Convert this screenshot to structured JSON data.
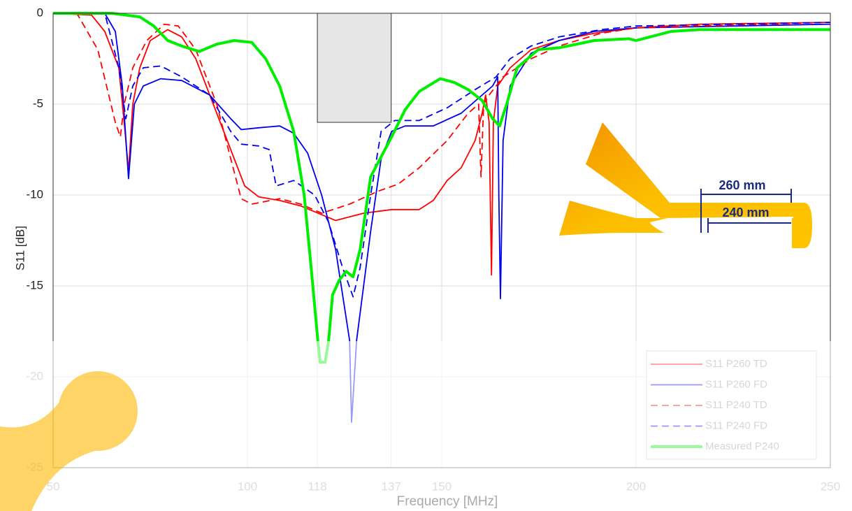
{
  "chart_data": {
    "type": "line",
    "xlabel": "Frequency [MHz]",
    "ylabel": "S11 [dB]",
    "xlim": [
      50,
      250
    ],
    "ylim": [
      -25,
      0
    ],
    "xticks": [
      50,
      100,
      118,
      137,
      150,
      200,
      250
    ],
    "yticks": [
      -25,
      -20,
      -15,
      -10,
      -5,
      0
    ],
    "grid": true,
    "legend": "lower right",
    "highlight": {
      "xlim": [
        118,
        137
      ],
      "ylim": [
        -6,
        0
      ],
      "color": "#e6e6e6"
    },
    "inset": {
      "labels": [
        "260 mm",
        "240 mm"
      ]
    },
    "series": [
      {
        "name": "S11 P260 TD",
        "color": "#ff0000",
        "width": 1.8,
        "dashed": false,
        "x": [
          50,
          59.9,
          63.3,
          66.9,
          68.3,
          69.4,
          70.5,
          72.3,
          75,
          79.5,
          83.1,
          86.7,
          90.3,
          95.7,
          99.3,
          102.9,
          108.3,
          113.7,
          122.7,
          129.9,
          137.1,
          144.2,
          147.8,
          151.4,
          155,
          158.6,
          160.4,
          161.3,
          162.2,
          162.8,
          163.3,
          164.4,
          167.6,
          173,
          180.2,
          189.2,
          200,
          216.2,
          250
        ],
        "values": [
          0,
          -0.1,
          -1,
          -3,
          -6,
          -8.7,
          -5,
          -3,
          -1.5,
          -0.9,
          -1.3,
          -2.5,
          -4.5,
          -7.5,
          -9.5,
          -10.1,
          -10.3,
          -10.6,
          -11.4,
          -11,
          -10.8,
          -10.8,
          -10.3,
          -9.2,
          -8.5,
          -7,
          -5.5,
          -4.5,
          -6,
          -14.4,
          -6,
          -4,
          -3,
          -2,
          -1.5,
          -1.1,
          -0.8,
          -0.6,
          -0.5
        ]
      },
      {
        "name": "S11 P260 FD",
        "color": "#0000ee",
        "width": 1.8,
        "dashed": false,
        "x": [
          50,
          63.3,
          66,
          67.8,
          69.4,
          70.9,
          73.2,
          77.7,
          83.1,
          90.3,
          95.7,
          98.4,
          102.9,
          108.3,
          111.9,
          115.5,
          119.1,
          122.7,
          126.3,
          126.8,
          128.1,
          131.7,
          134.4,
          137.1,
          140.6,
          147.8,
          155,
          160.4,
          163.1,
          164.4,
          164.7,
          165.1,
          165.8,
          167.6,
          173,
          180.2,
          189.2,
          200,
          250
        ],
        "values": [
          0,
          0,
          -1,
          -4,
          -9.1,
          -5,
          -4,
          -3.6,
          -3.7,
          -4.5,
          -5.8,
          -6.4,
          -6.3,
          -6.2,
          -6.6,
          -7.7,
          -10,
          -13,
          -18,
          -22.5,
          -18,
          -12,
          -8,
          -6.5,
          -6.2,
          -6.2,
          -5.5,
          -4.5,
          -4,
          -3.5,
          -10,
          -15.7,
          -7,
          -4,
          -2.2,
          -1.5,
          -1,
          -0.8,
          -0.6
        ]
      },
      {
        "name": "S11 P240 TD",
        "color": "#ff0000",
        "width": 1.8,
        "dashed": true,
        "x": [
          50,
          56.1,
          61.5,
          66,
          67.3,
          68.3,
          70.5,
          74.1,
          78.6,
          82.2,
          86.7,
          92.1,
          95.7,
          98.4,
          101.1,
          108.3,
          113.7,
          119.1,
          126.3,
          133.5,
          138.8,
          144.2,
          151.4,
          156.8,
          159.5,
          160.1,
          160.8,
          162.2,
          165.8,
          173,
          180.2,
          191,
          200,
          250
        ],
        "values": [
          0,
          0,
          -2,
          -6,
          -6.8,
          -5,
          -3,
          -1.5,
          -0.6,
          -0.7,
          -2,
          -5,
          -8,
          -10.2,
          -10.5,
          -10.2,
          -10.5,
          -11,
          -10.5,
          -9.8,
          -9.4,
          -8.5,
          -7,
          -5.5,
          -5,
          -9,
          -5,
          -4.5,
          -3.5,
          -2.5,
          -1.8,
          -1.1,
          -0.8,
          -0.5
        ]
      },
      {
        "name": "S11 P240 FD",
        "color": "#0000ee",
        "width": 1.8,
        "dashed": true,
        "x": [
          50,
          63.3,
          66.9,
          68.7,
          70.5,
          73.2,
          77.7,
          83.1,
          90.3,
          95.7,
          98.4,
          102.9,
          105.6,
          107.4,
          111.9,
          117.3,
          120.9,
          124.5,
          127.2,
          129,
          131.7,
          134.4,
          137.9,
          144.2,
          151.4,
          158.6,
          164,
          167.6,
          173,
          180.2,
          191,
          200,
          250
        ],
        "values": [
          0,
          0,
          -3,
          -5.8,
          -4,
          -3,
          -2.9,
          -3.5,
          -4.5,
          -6.5,
          -7.2,
          -7.3,
          -7.5,
          -9.5,
          -9.2,
          -10,
          -11.5,
          -14,
          -15.6,
          -14,
          -10,
          -6.5,
          -5.9,
          -5.9,
          -5.2,
          -4.2,
          -3.5,
          -2.5,
          -1.8,
          -1.3,
          -0.9,
          -0.7,
          -0.5
        ]
      },
      {
        "name": "Measured P240",
        "color": "#00ee00",
        "width": 4,
        "dashed": false,
        "x": [
          50,
          65.1,
          72.3,
          75.9,
          79.5,
          83.1,
          87.6,
          92.1,
          96.6,
          101.1,
          104.7,
          108.3,
          111.9,
          114.6,
          116.4,
          118.2,
          118.7,
          120,
          120.9,
          121.9,
          123.6,
          125.4,
          127.2,
          129,
          131.7,
          137.1,
          140.6,
          144.2,
          149.6,
          153.2,
          156.8,
          160.4,
          163.1,
          164.9,
          166.7,
          169.4,
          174.8,
          180.2,
          189.2,
          198.2,
          200,
          203.6,
          209,
          216.2,
          250
        ],
        "values": [
          0,
          0,
          -0.2,
          -0.7,
          -1.5,
          -1.8,
          -2.1,
          -1.7,
          -1.5,
          -1.6,
          -2.5,
          -4,
          -6.5,
          -10,
          -14,
          -18.2,
          -19.2,
          -19.2,
          -18,
          -15.5,
          -14.7,
          -14.2,
          -14.5,
          -13,
          -9,
          -6.8,
          -5.3,
          -4.3,
          -3.6,
          -3.8,
          -4.2,
          -4.8,
          -5.8,
          -6.2,
          -5,
          -3,
          -2,
          -1.9,
          -1.5,
          -1.4,
          -1.5,
          -1.3,
          -1,
          -0.9,
          -0.9
        ]
      }
    ]
  }
}
